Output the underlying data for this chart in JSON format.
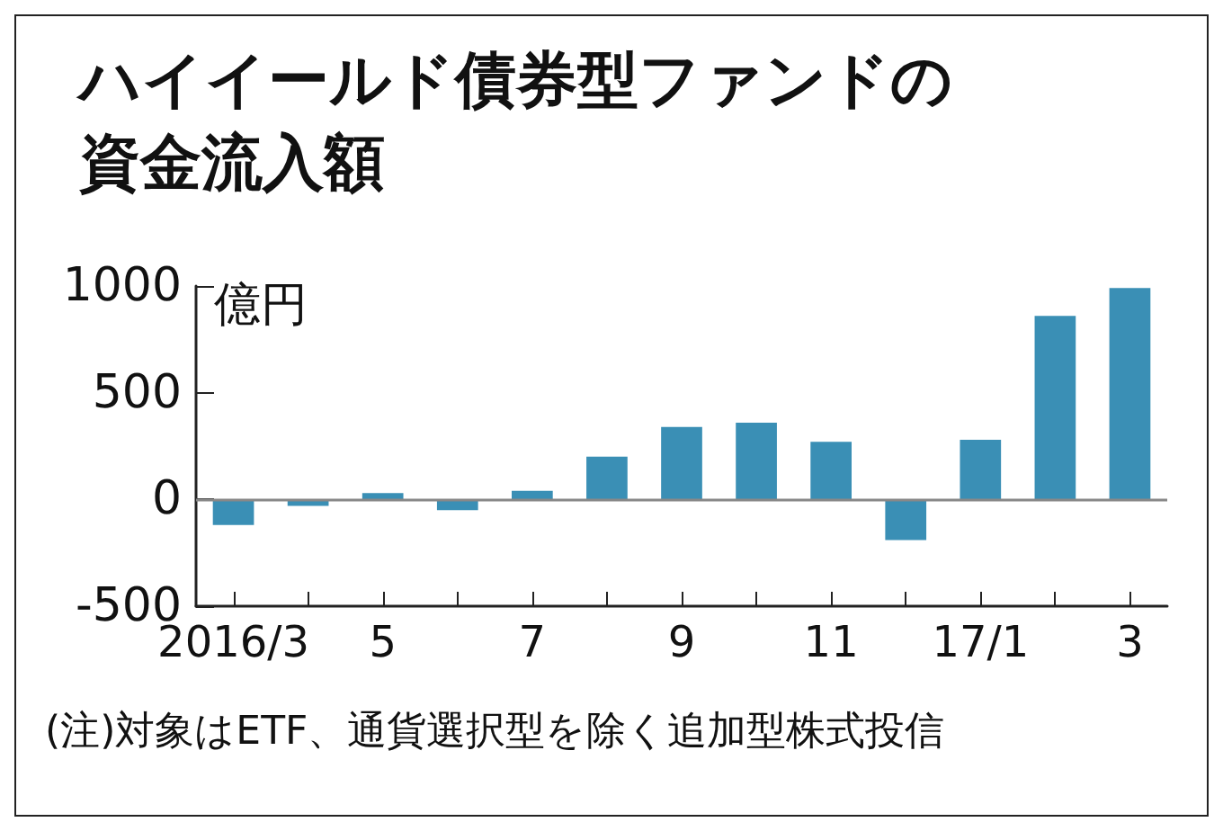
{
  "chart_data": {
    "type": "bar",
    "title": "ハイイールド債券型ファンドの資金流入額",
    "ylabel": "億円",
    "categories": [
      "2016/3",
      null,
      "5",
      null,
      "7",
      null,
      "9",
      null,
      "11",
      null,
      "17/1",
      null,
      "3"
    ],
    "values": [
      -120,
      -30,
      30,
      -50,
      40,
      200,
      340,
      360,
      270,
      -190,
      280,
      860,
      990
    ],
    "color": "#3a8fb5",
    "ylim": [
      -500,
      1000
    ],
    "yticks": [
      -500,
      0,
      500,
      1000
    ],
    "grid": false,
    "ref_lines": [
      {
        "axis": "y",
        "value": 0,
        "color": "#888888"
      }
    ],
    "annotations": [
      "(注)対象はETF、通貨選択型を除く追加型株式投信"
    ]
  }
}
